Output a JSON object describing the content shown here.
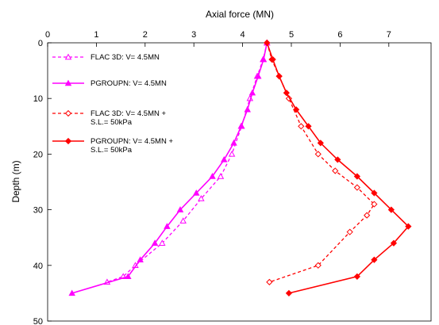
{
  "chart_data": {
    "type": "line",
    "xlabel": "Axial force (MN)",
    "ylabel": "Depth (m)",
    "xlim": [
      0,
      8
    ],
    "ylim": [
      0,
      50
    ],
    "x_axis_position": "top",
    "y_axis_reversed": true,
    "x_ticks": [
      "0",
      "1",
      "2",
      "3",
      "4",
      "5",
      "6",
      "7"
    ],
    "y_ticks": [
      "0",
      "10",
      "20",
      "30",
      "40",
      "50"
    ],
    "grid": false,
    "legend_position": "upper-left inside plot",
    "series": [
      {
        "name": "FLAC 3D: V= 4.5MN",
        "color": "#ff00ff",
        "line": "dashed",
        "marker": "open-triangle",
        "points": [
          [
            4.5,
            0
          ],
          [
            4.42,
            3
          ],
          [
            4.3,
            6
          ],
          [
            4.15,
            10
          ],
          [
            3.98,
            15
          ],
          [
            3.78,
            20
          ],
          [
            3.55,
            24
          ],
          [
            3.15,
            28
          ],
          [
            2.78,
            32
          ],
          [
            2.35,
            36
          ],
          [
            1.8,
            40
          ],
          [
            1.55,
            42
          ],
          [
            1.22,
            43
          ]
        ]
      },
      {
        "name": "PGROUPN: V= 4.5MN",
        "color": "#ff00ff",
        "line": "solid",
        "marker": "filled-triangle",
        "points": [
          [
            4.5,
            0
          ],
          [
            4.43,
            3
          ],
          [
            4.32,
            6
          ],
          [
            4.2,
            9
          ],
          [
            4.1,
            12
          ],
          [
            3.97,
            15
          ],
          [
            3.82,
            18
          ],
          [
            3.62,
            21
          ],
          [
            3.38,
            24
          ],
          [
            3.05,
            27
          ],
          [
            2.72,
            30
          ],
          [
            2.45,
            33
          ],
          [
            2.2,
            36
          ],
          [
            1.9,
            39
          ],
          [
            1.65,
            42
          ],
          [
            0.5,
            45
          ]
        ]
      },
      {
        "name": "FLAC 3D: V= 4.5MN + S.L.= 50kPa",
        "color": "#ff0000",
        "line": "dashed",
        "marker": "open-diamond",
        "points": [
          [
            4.5,
            0
          ],
          [
            4.6,
            3
          ],
          [
            4.75,
            6
          ],
          [
            4.95,
            10
          ],
          [
            5.2,
            15
          ],
          [
            5.55,
            20
          ],
          [
            5.9,
            23
          ],
          [
            6.35,
            26
          ],
          [
            6.7,
            29
          ],
          [
            6.55,
            31
          ],
          [
            6.2,
            34
          ],
          [
            5.55,
            40
          ],
          [
            4.55,
            43
          ]
        ]
      },
      {
        "name": "PGROUPN: V= 4.5MN + S.L.= 50kPa",
        "color": "#ff0000",
        "line": "solid",
        "marker": "filled-diamond",
        "points": [
          [
            4.5,
            0
          ],
          [
            4.62,
            3
          ],
          [
            4.75,
            6
          ],
          [
            4.9,
            9
          ],
          [
            5.1,
            12
          ],
          [
            5.35,
            15
          ],
          [
            5.6,
            18
          ],
          [
            5.95,
            21
          ],
          [
            6.35,
            24
          ],
          [
            6.7,
            27
          ],
          [
            7.05,
            30
          ],
          [
            7.4,
            33
          ],
          [
            7.1,
            36
          ],
          [
            6.7,
            39
          ],
          [
            6.35,
            42
          ],
          [
            4.95,
            45
          ]
        ]
      }
    ],
    "legend": [
      {
        "label_lines": [
          "FLAC 3D: V= 4.5MN"
        ]
      },
      {
        "label_lines": [
          "PGROUPN: V= 4.5MN"
        ]
      },
      {
        "label_lines": [
          "FLAC 3D: V= 4.5MN +",
          "S.L.= 50kPa"
        ]
      },
      {
        "label_lines": [
          "PGROUPN: V= 4.5MN +",
          "S.L.= 50kPa"
        ]
      }
    ]
  }
}
